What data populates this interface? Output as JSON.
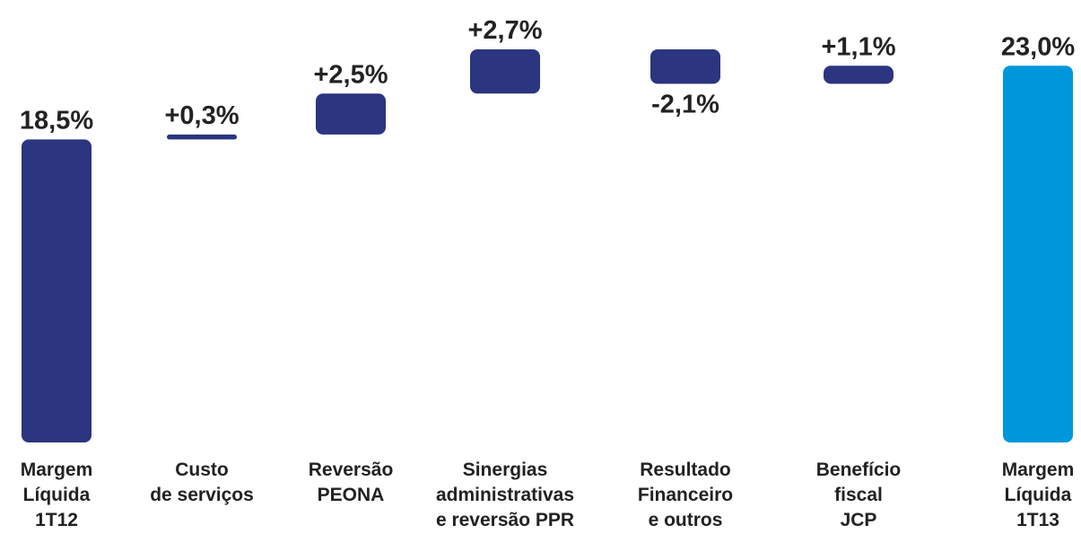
{
  "chart_data": {
    "type": "waterfall",
    "categories": [
      [
        "Margem",
        "Líquida",
        "1T12"
      ],
      [
        "Custo",
        "de serviços"
      ],
      [
        "Reversão",
        "PEONA"
      ],
      [
        "Sinergias",
        "administrativas",
        "e reversão PPR"
      ],
      [
        "Resultado",
        "Financeiro",
        "e outros"
      ],
      [
        "Benefício",
        "fiscal",
        "JCP"
      ],
      [
        "Margem",
        "Líquida",
        "1T13"
      ]
    ],
    "values": [
      18.5,
      0.3,
      2.5,
      2.7,
      -2.1,
      1.1,
      23.0
    ],
    "value_labels": [
      "18,5%",
      "+0,3%",
      "+2,5%",
      "+2,7%",
      "-2,1%",
      "+1,1%",
      "23,0%"
    ],
    "totals": [
      true,
      false,
      false,
      false,
      false,
      false,
      true
    ],
    "color": "#2b3580",
    "total_color": "#0096dc"
  }
}
